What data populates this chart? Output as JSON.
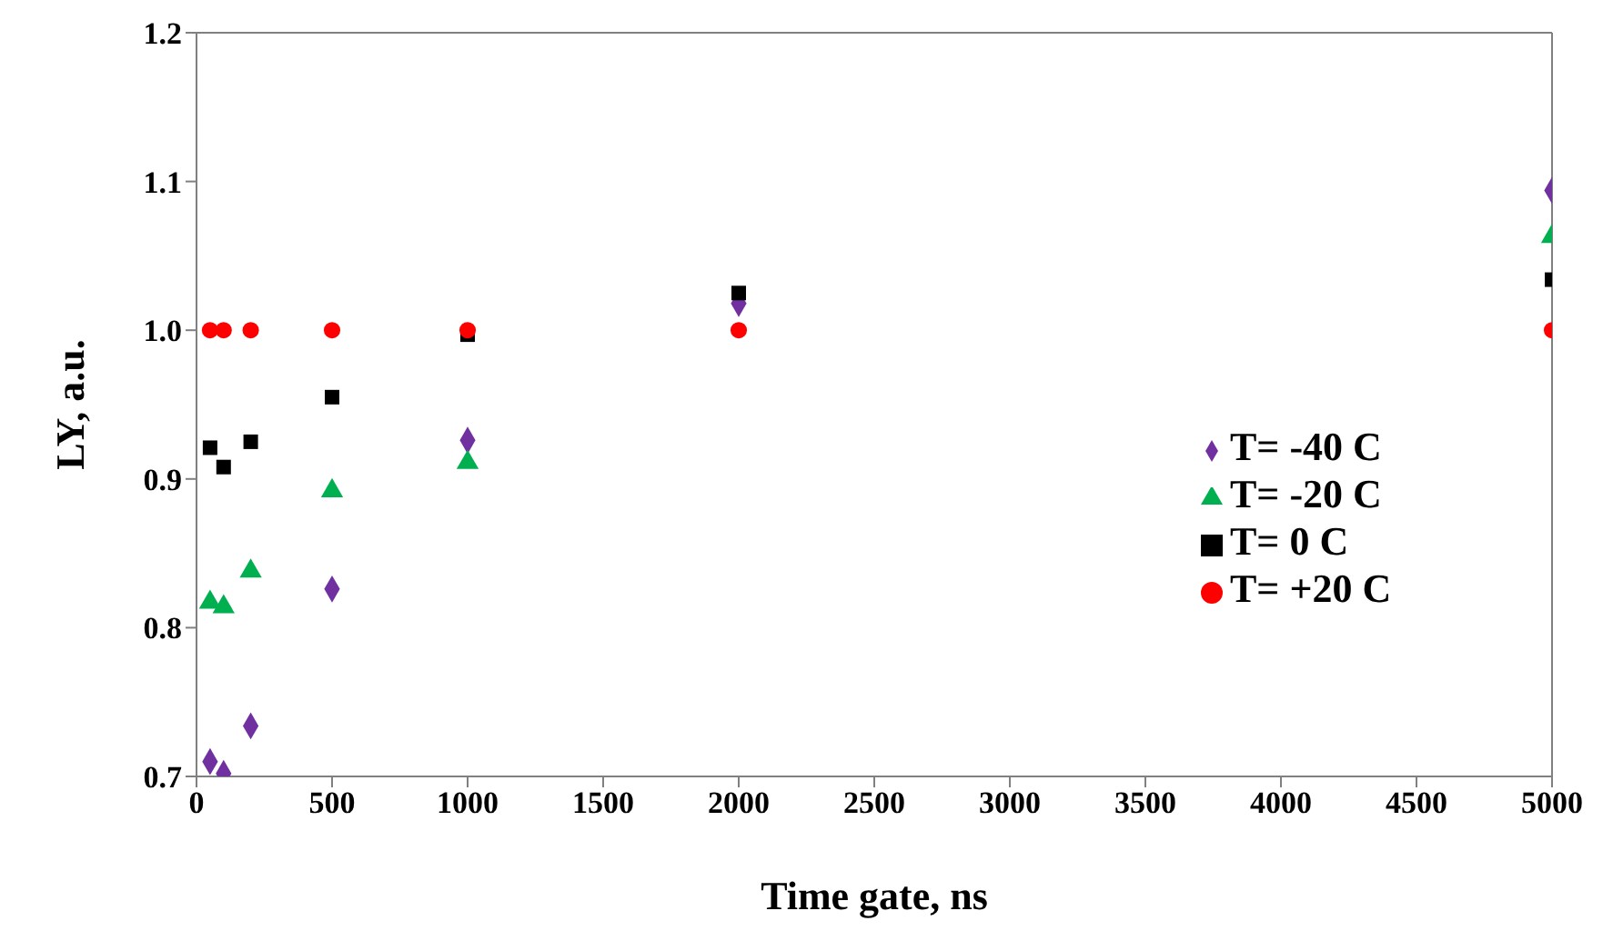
{
  "chart_data": {
    "type": "scatter",
    "xlabel": "Time gate, ns",
    "ylabel": "LY, a.u.",
    "x": [
      50,
      100,
      200,
      500,
      1000,
      2000,
      5000
    ],
    "series": [
      {
        "name": "T= -40 C",
        "color": "#7030a0",
        "marker": "diamond",
        "values": [
          0.71,
          0.702,
          0.734,
          0.826,
          0.926,
          1.018,
          1.094
        ]
      },
      {
        "name": "T= -20 C",
        "color": "#00b050",
        "marker": "triangle",
        "values": [
          0.817,
          0.814,
          0.838,
          0.892,
          0.911,
          null,
          1.063
        ]
      },
      {
        "name": "T= 0 C",
        "color": "#000000",
        "marker": "square",
        "values": [
          0.921,
          0.908,
          0.925,
          0.955,
          0.997,
          1.025,
          1.034
        ]
      },
      {
        "name": "T= +20 C",
        "color": "#ff0000",
        "marker": "circle",
        "values": [
          1.0,
          1.0,
          1.0,
          1.0,
          1.0,
          1.0,
          1.0
        ]
      }
    ],
    "xlim": [
      0,
      5000
    ],
    "xticks": [
      0,
      500,
      1000,
      1500,
      2000,
      2500,
      3000,
      3500,
      4000,
      4500,
      5000
    ],
    "ylim": [
      0.7,
      1.2
    ],
    "yticks": [
      {
        "value": 0.7,
        "label": "0.7"
      },
      {
        "value": 0.8,
        "label": "0.8"
      },
      {
        "value": 0.9,
        "label": "0.9"
      },
      {
        "value": 1.0,
        "label": "1.0"
      },
      {
        "value": 1.1,
        "label": "1.1"
      },
      {
        "value": 1.2,
        "label": "1.2"
      }
    ],
    "legend": "right"
  }
}
